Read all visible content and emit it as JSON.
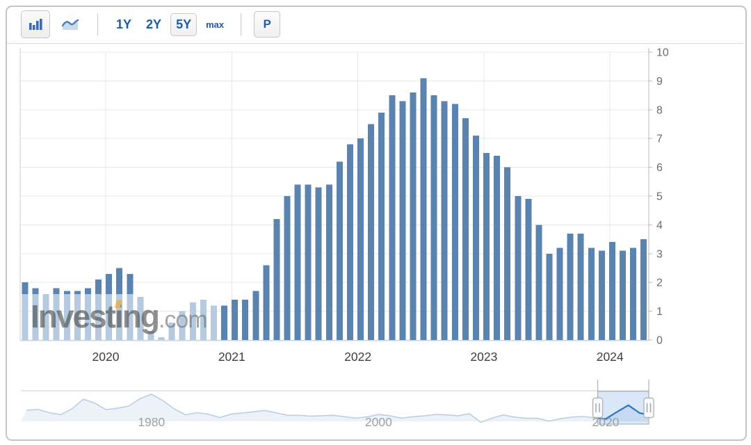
{
  "toolbar": {
    "chart_type_buttons": [
      {
        "icon": "column-chart-icon",
        "selected": true
      },
      {
        "icon": "area-chart-icon",
        "selected": false
      }
    ],
    "range_buttons": [
      {
        "label": "1Y",
        "selected": false
      },
      {
        "label": "2Y",
        "selected": false
      },
      {
        "label": "5Y",
        "selected": true
      },
      {
        "label": "max",
        "selected": false
      }
    ],
    "p_button_label": "P"
  },
  "watermark": {
    "part1": "Invest",
    "accent_letter": "i",
    "part2": "ng",
    "suffix": ".com"
  },
  "chart_data": {
    "type": "bar",
    "title": "",
    "xlabel": "",
    "ylabel": "",
    "x_unit": "month",
    "start_month": "2019-04",
    "end_month": "2024-03",
    "values": [
      2.0,
      1.8,
      1.6,
      1.8,
      1.7,
      1.7,
      1.8,
      2.1,
      2.3,
      2.5,
      2.3,
      1.5,
      0.3,
      0.1,
      0.6,
      1.0,
      1.3,
      1.4,
      1.2,
      1.2,
      1.4,
      1.4,
      1.7,
      2.6,
      4.2,
      5.0,
      5.4,
      5.4,
      5.3,
      5.4,
      6.2,
      6.8,
      7.0,
      7.5,
      7.9,
      8.5,
      8.3,
      8.6,
      9.1,
      8.5,
      8.3,
      8.2,
      7.7,
      7.1,
      6.5,
      6.4,
      6.0,
      5.0,
      4.9,
      4.0,
      3.0,
      3.2,
      3.7,
      3.7,
      3.2,
      3.1,
      3.4,
      3.1,
      3.2,
      3.5
    ],
    "ylim": [
      0,
      10
    ],
    "y_ticks": [
      0,
      1,
      2,
      3,
      4,
      5,
      6,
      7,
      8,
      9,
      10
    ],
    "x_tick_labels": [
      "2020",
      "2021",
      "2022",
      "2023",
      "2024"
    ],
    "grid": true,
    "legend": "none",
    "light_bar_count": 19,
    "cap_threshold": 1.6,
    "colors": {
      "bar_dark": "#5a83b0",
      "bar_light": "#b5cade",
      "grid_line": "#e8e8e8",
      "axis_line": "#b9b9b9",
      "baseline": "#c9d6e4",
      "y_label": "#6b6b6b",
      "x_label": "#3d3d3d"
    }
  },
  "navigator": {
    "tick_labels": [
      "1980",
      "2000",
      "2020"
    ],
    "tick_years": [
      1980,
      2000,
      2020
    ],
    "years_start": 1969,
    "values": [
      5.5,
      5.9,
      4.3,
      3.3,
      6.2,
      11.0,
      9.1,
      5.8,
      6.5,
      7.6,
      11.3,
      13.5,
      10.3,
      6.2,
      3.2,
      4.3,
      3.6,
      1.9,
      3.6,
      4.1,
      4.8,
      5.4,
      4.2,
      3.0,
      3.0,
      2.6,
      2.8,
      3.0,
      2.3,
      1.6,
      2.2,
      3.4,
      2.8,
      1.6,
      2.3,
      2.7,
      3.4,
      3.2,
      2.8,
      3.8,
      -0.4,
      1.6,
      3.2,
      2.1,
      1.5,
      1.6,
      0.1,
      1.3,
      2.1,
      2.4,
      1.8,
      1.2,
      4.7,
      8.0,
      4.1,
      3.3
    ],
    "selected_range": {
      "start_year": 2019.3,
      "end_year": 2024.25
    },
    "colors": {
      "line_light": "#b9cfe4",
      "area_light": "#edf2f8",
      "line_selected": "#2f72bc",
      "area_selected": "#c6dbf3",
      "selection_fill": "#d9e7f8",
      "selection_border": "#b0b7bd",
      "handle_fill": "#fcfcfc",
      "handle_border": "#b4b4b4",
      "label": "#9aa0a6"
    }
  }
}
